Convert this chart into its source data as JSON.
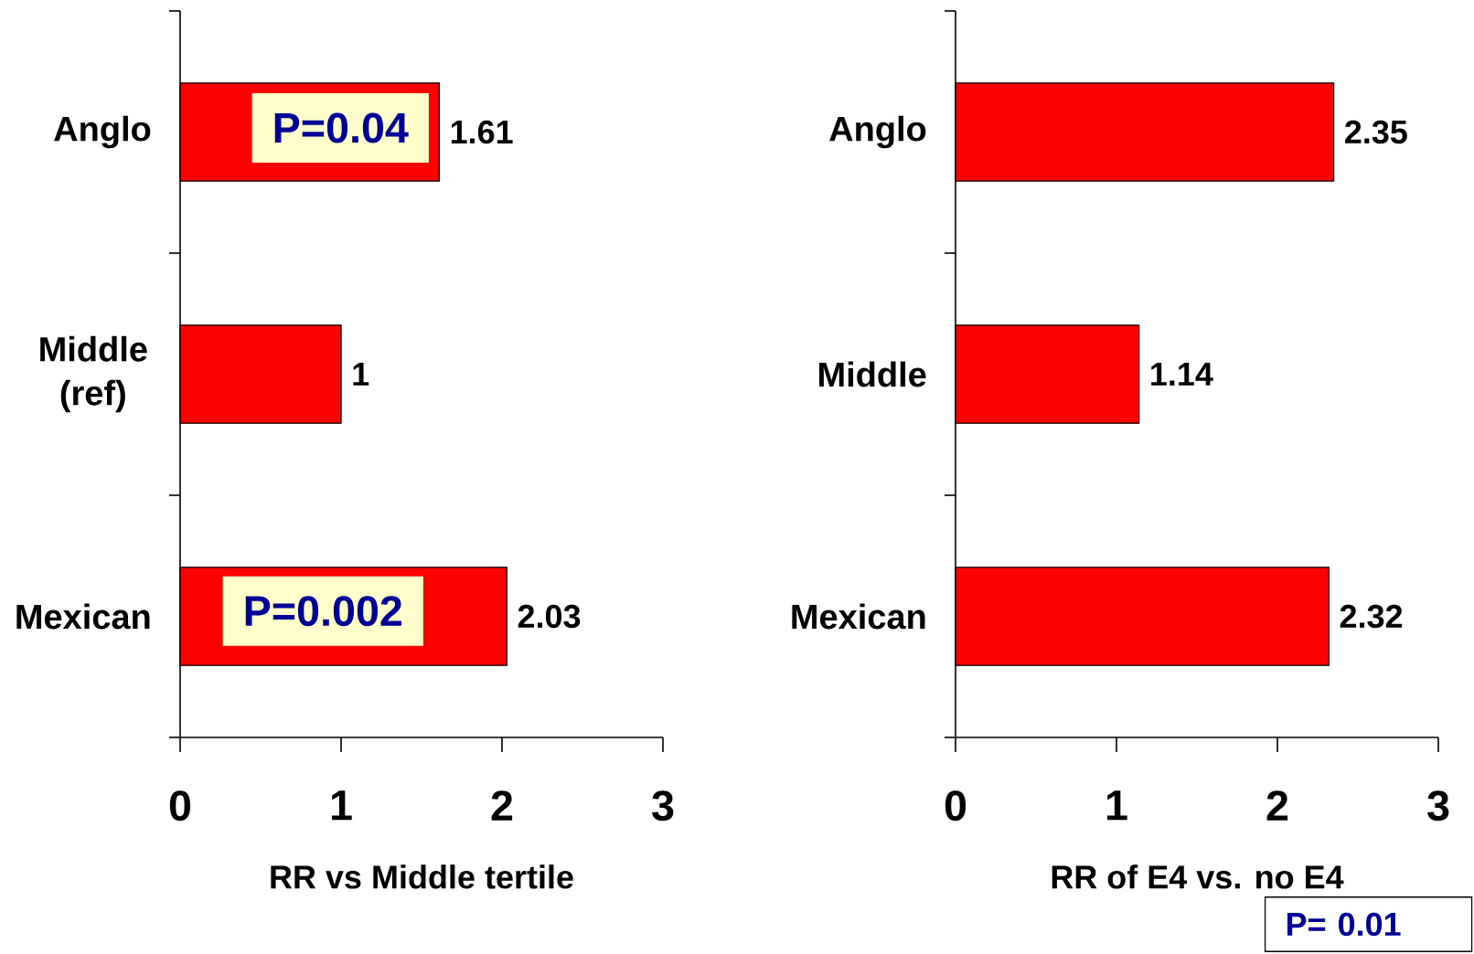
{
  "chart_data": [
    {
      "type": "bar",
      "orientation": "horizontal",
      "categories": [
        "Anglo",
        "Middle (ref)",
        "Mexican"
      ],
      "values": [
        1.61,
        1,
        2.03
      ],
      "color": "#ff0000",
      "xlim": [
        0,
        3
      ],
      "xticks": [
        0,
        1,
        2,
        3
      ],
      "xlabel": "RR vs Middle tertile",
      "data_labels": true,
      "annotations": [
        "P=0.04",
        "P=0.002"
      ]
    },
    {
      "type": "bar",
      "orientation": "horizontal",
      "categories": [
        "Anglo",
        "Middle",
        "Mexican"
      ],
      "values": [
        2.35,
        1.14,
        2.32
      ],
      "color": "#ff0000",
      "xlim": [
        0,
        3
      ],
      "xticks": [
        0,
        1,
        2,
        3
      ],
      "xlabel": "RR of E4 vs. no E4",
      "data_labels": true,
      "annotations": [
        "P= 0.01"
      ]
    }
  ]
}
